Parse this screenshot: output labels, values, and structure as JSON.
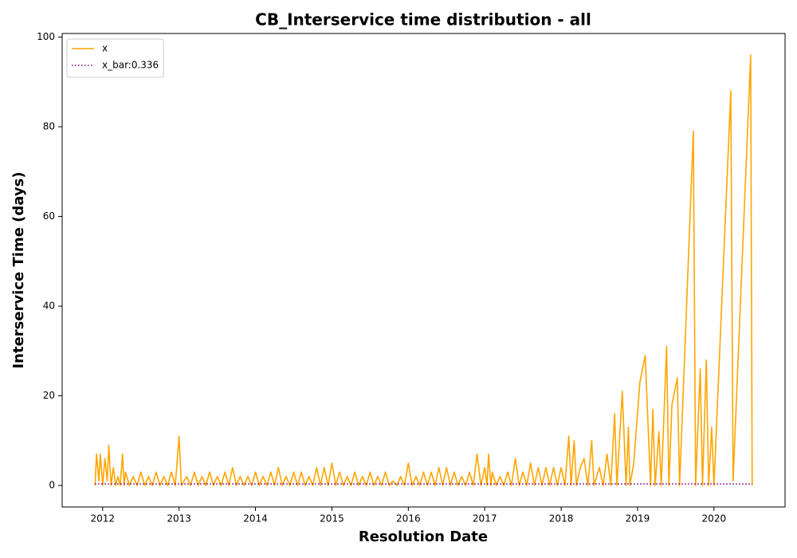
{
  "chart_data": {
    "type": "line",
    "title": "CB_Interservice time distribution - all",
    "xlabel": "Resolution Date",
    "ylabel": "Interservice Time (days)",
    "xlim": [
      2011.47,
      2020.93
    ],
    "ylim": [
      -4.8,
      100.8
    ],
    "xticks": [
      2012,
      2013,
      2014,
      2015,
      2016,
      2017,
      2018,
      2019,
      2020
    ],
    "yticks": [
      0,
      20,
      40,
      60,
      80,
      100
    ],
    "legend": "upper left",
    "series": [
      {
        "name": "x",
        "color": "#ffa500",
        "style": "solid",
        "x": [
          2011.9,
          2011.92,
          2011.95,
          2011.97,
          2012.0,
          2012.03,
          2012.06,
          2012.08,
          2012.11,
          2012.14,
          2012.17,
          2012.2,
          2012.23,
          2012.26,
          2012.28,
          2012.3,
          2012.35,
          2012.4,
          2012.45,
          2012.5,
          2012.55,
          2012.6,
          2012.65,
          2012.7,
          2012.75,
          2012.8,
          2012.85,
          2012.9,
          2012.95,
          2013.0,
          2013.03,
          2013.1,
          2013.15,
          2013.2,
          2013.25,
          2013.3,
          2013.35,
          2013.4,
          2013.45,
          2013.5,
          2013.55,
          2013.6,
          2013.65,
          2013.7,
          2013.75,
          2013.8,
          2013.85,
          2013.9,
          2013.95,
          2014.0,
          2014.05,
          2014.1,
          2014.15,
          2014.2,
          2014.25,
          2014.3,
          2014.35,
          2014.4,
          2014.45,
          2014.5,
          2014.55,
          2014.6,
          2014.65,
          2014.7,
          2014.75,
          2014.8,
          2014.85,
          2014.9,
          2014.95,
          2015.0,
          2015.05,
          2015.1,
          2015.15,
          2015.2,
          2015.25,
          2015.3,
          2015.35,
          2015.4,
          2015.45,
          2015.5,
          2015.55,
          2015.6,
          2015.65,
          2015.7,
          2015.75,
          2015.8,
          2015.85,
          2015.9,
          2015.95,
          2016.0,
          2016.05,
          2016.1,
          2016.15,
          2016.2,
          2016.25,
          2016.3,
          2016.35,
          2016.4,
          2016.45,
          2016.5,
          2016.55,
          2016.6,
          2016.65,
          2016.7,
          2016.75,
          2016.8,
          2016.85,
          2016.9,
          2016.95,
          2017.0,
          2017.03,
          2017.05,
          2017.08,
          2017.1,
          2017.15,
          2017.2,
          2017.25,
          2017.3,
          2017.35,
          2017.4,
          2017.45,
          2017.5,
          2017.55,
          2017.6,
          2017.65,
          2017.7,
          2017.75,
          2017.8,
          2017.85,
          2017.9,
          2017.95,
          2018.0,
          2018.05,
          2018.1,
          2018.13,
          2018.17,
          2018.2,
          2018.25,
          2018.3,
          2018.35,
          2018.4,
          2018.43,
          2018.5,
          2018.55,
          2018.6,
          2018.65,
          2018.7,
          2018.73,
          2018.8,
          2018.85,
          2018.88,
          2018.9,
          2018.95,
          2019.03,
          2019.1,
          2019.17,
          2019.2,
          2019.23,
          2019.28,
          2019.31,
          2019.38,
          2019.41,
          2019.45,
          2019.52,
          2019.55,
          2019.73,
          2019.76,
          2019.82,
          2019.85,
          2019.9,
          2019.93,
          2019.97,
          2020.0,
          2020.22,
          2020.25,
          2020.48,
          2020.5
        ],
        "values": [
          0,
          7,
          1,
          7,
          0,
          6,
          1,
          9,
          0,
          4,
          0,
          2,
          0,
          7,
          0,
          3,
          0,
          2,
          0,
          3,
          0,
          2,
          0,
          3,
          0,
          2,
          0,
          3,
          0,
          11,
          0,
          2,
          0,
          3,
          0,
          2,
          0,
          3,
          0,
          2,
          0,
          3,
          0,
          4,
          0,
          2,
          0,
          2,
          0,
          3,
          0,
          2,
          0,
          3,
          0,
          4,
          0,
          2,
          0,
          3,
          0,
          3,
          0,
          2,
          0,
          4,
          0,
          4,
          0,
          5,
          0,
          3,
          0,
          2,
          0,
          3,
          0,
          2,
          0,
          3,
          0,
          2,
          0,
          3,
          0,
          1,
          0,
          2,
          0,
          5,
          0,
          2,
          0,
          3,
          0,
          3,
          0,
          4,
          0,
          4,
          0,
          3,
          0,
          2,
          0,
          3,
          0,
          7,
          0,
          4,
          0,
          7,
          0,
          3,
          0,
          2,
          0,
          3,
          0,
          6,
          0,
          3,
          0,
          5,
          0,
          4,
          0,
          4,
          0,
          4,
          0,
          4,
          0,
          11,
          0,
          10,
          0,
          4,
          6,
          0,
          10,
          0,
          4,
          0,
          7,
          0,
          16,
          0,
          21,
          0,
          13,
          0,
          5,
          23,
          29,
          0,
          17,
          0,
          12,
          0,
          31,
          0,
          18,
          24,
          0,
          79,
          0,
          26,
          0,
          28,
          0,
          13,
          0,
          88,
          1,
          96,
          0
        ]
      },
      {
        "name": "x_bar:0.336",
        "color": "purple",
        "style": "dotted",
        "x": [
          2011.9,
          2020.5
        ],
        "values": [
          0.336,
          0.336
        ]
      }
    ]
  }
}
